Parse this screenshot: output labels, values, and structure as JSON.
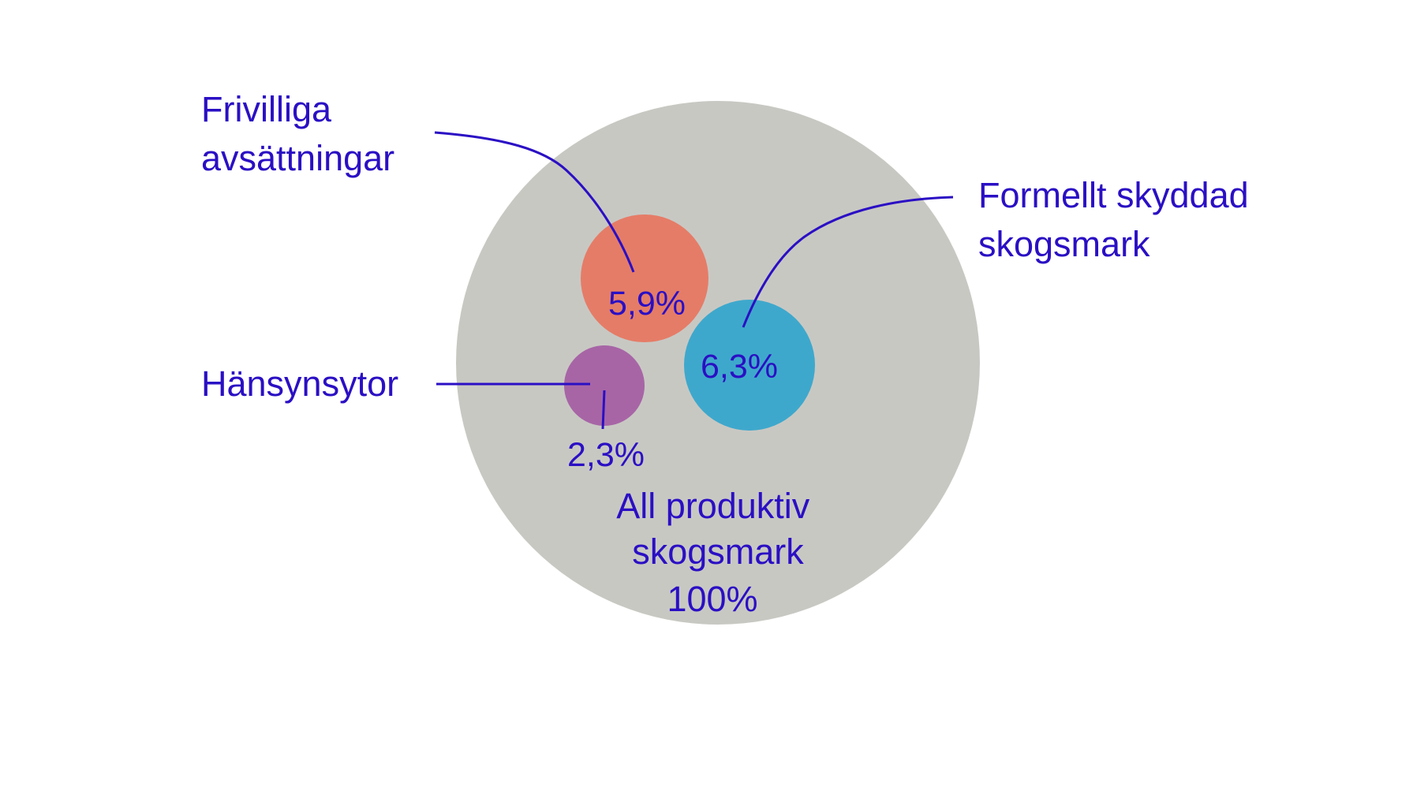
{
  "colors": {
    "text": "#2a0fc4",
    "leader": "#2a0fc4",
    "background": "#ffffff"
  },
  "chart_data": {
    "type": "bubble",
    "title": "",
    "legend": "none",
    "grid": false,
    "total": {
      "name": "All produktiv skogsmark",
      "lines": [
        "All produktiv",
        "skogsmark"
      ],
      "value": 100,
      "value_label": "100%",
      "color": "#c8c8c3"
    },
    "series": [
      {
        "key": "frivilliga",
        "name": "Frivilliga avsättningar",
        "lines": [
          "Frivilliga",
          "avsättningar"
        ],
        "value": 5.9,
        "value_label": "5,9%",
        "color": "#e57c67"
      },
      {
        "key": "formellt",
        "name": "Formellt skyddad skogsmark",
        "lines": [
          "Formellt skyddad",
          "skogsmark"
        ],
        "value": 6.3,
        "value_label": "6,3%",
        "color": "#3ea8cc"
      },
      {
        "key": "hansyn",
        "name": "Hänsynsytor",
        "lines": [
          "Hänsynsytor"
        ],
        "value": 2.3,
        "value_label": "2,3%",
        "color": "#a765a6"
      }
    ]
  }
}
